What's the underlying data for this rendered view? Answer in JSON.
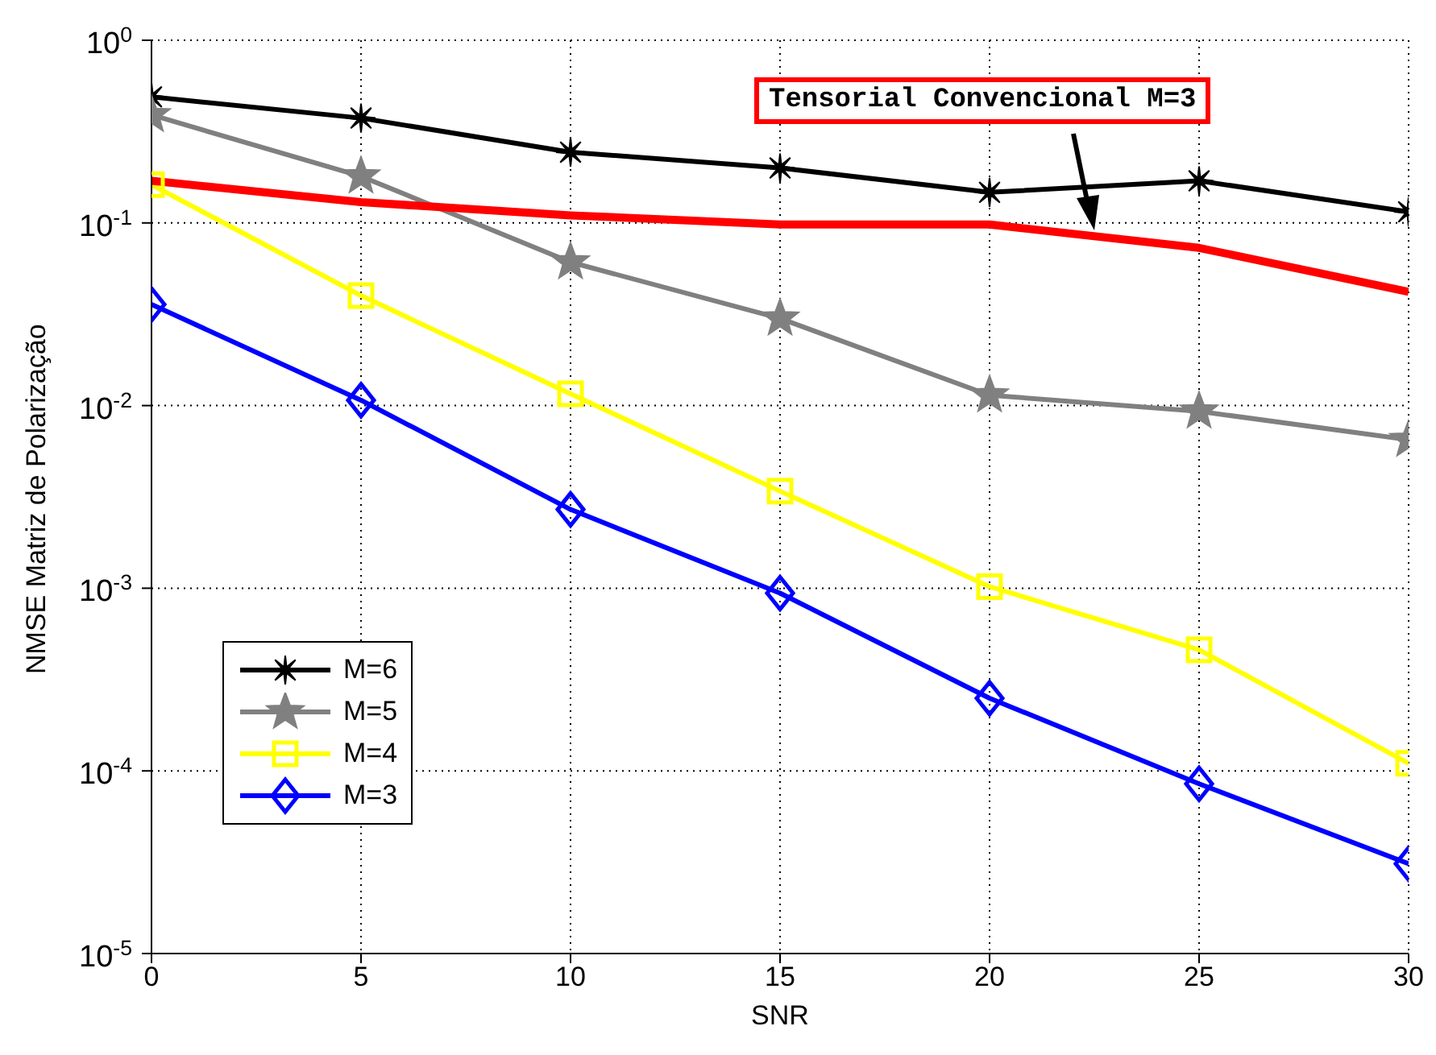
{
  "chart_data": {
    "type": "line",
    "xlabel": "SNR",
    "ylabel": "NMSE Matriz de Polarização",
    "x": [
      0,
      5,
      10,
      15,
      20,
      25,
      30
    ],
    "series": [
      {
        "name": "M=6",
        "color": "#000000",
        "marker": "cross",
        "values": [
          0.49,
          0.375,
          0.244,
          0.2,
          0.147,
          0.17,
          0.115
        ]
      },
      {
        "name": "M=5",
        "color": "#808080",
        "marker": "star",
        "values": [
          0.39,
          0.18,
          0.061,
          0.03,
          0.0114,
          0.0093,
          0.0065
        ]
      },
      {
        "name": "M=4",
        "color": "#ffff00",
        "marker": "square",
        "values": [
          0.162,
          0.04,
          0.0116,
          0.0034,
          0.00102,
          0.00046,
          0.00011
        ]
      },
      {
        "name": "M=3",
        "color": "#0000ff",
        "marker": "diamond",
        "values": [
          0.0358,
          0.0107,
          0.0027,
          0.00094,
          0.00025,
          8.5e-05,
          3.1e-05
        ]
      },
      {
        "color": "#ff0000",
        "marker": "none",
        "values": [
          0.17,
          0.13,
          0.11,
          0.098,
          0.098,
          0.073,
          0.042
        ]
      }
    ],
    "annotations": [
      "Tensorial Convencional M=3"
    ],
    "log": "y",
    "xlim": [
      0,
      30
    ],
    "xticks": [
      0,
      5,
      10,
      15,
      20,
      25,
      30
    ],
    "ylim": [
      1e-05,
      1
    ],
    "yticks": [
      {
        "value": 1e-05,
        "label": "10$^{-5}$"
      },
      {
        "value": 0.0001,
        "label": "10$^{-4}$"
      },
      {
        "value": 0.001,
        "label": "10$^{-3}$"
      },
      {
        "value": 0.01,
        "label": "10$^{-2}$"
      },
      {
        "value": 0.1,
        "label": "10$^{-1}$"
      },
      {
        "value": 1,
        "label": "10$^{0}$"
      }
    ],
    "grid": true,
    "legend": "bottom left",
    "line_style": "solid"
  }
}
